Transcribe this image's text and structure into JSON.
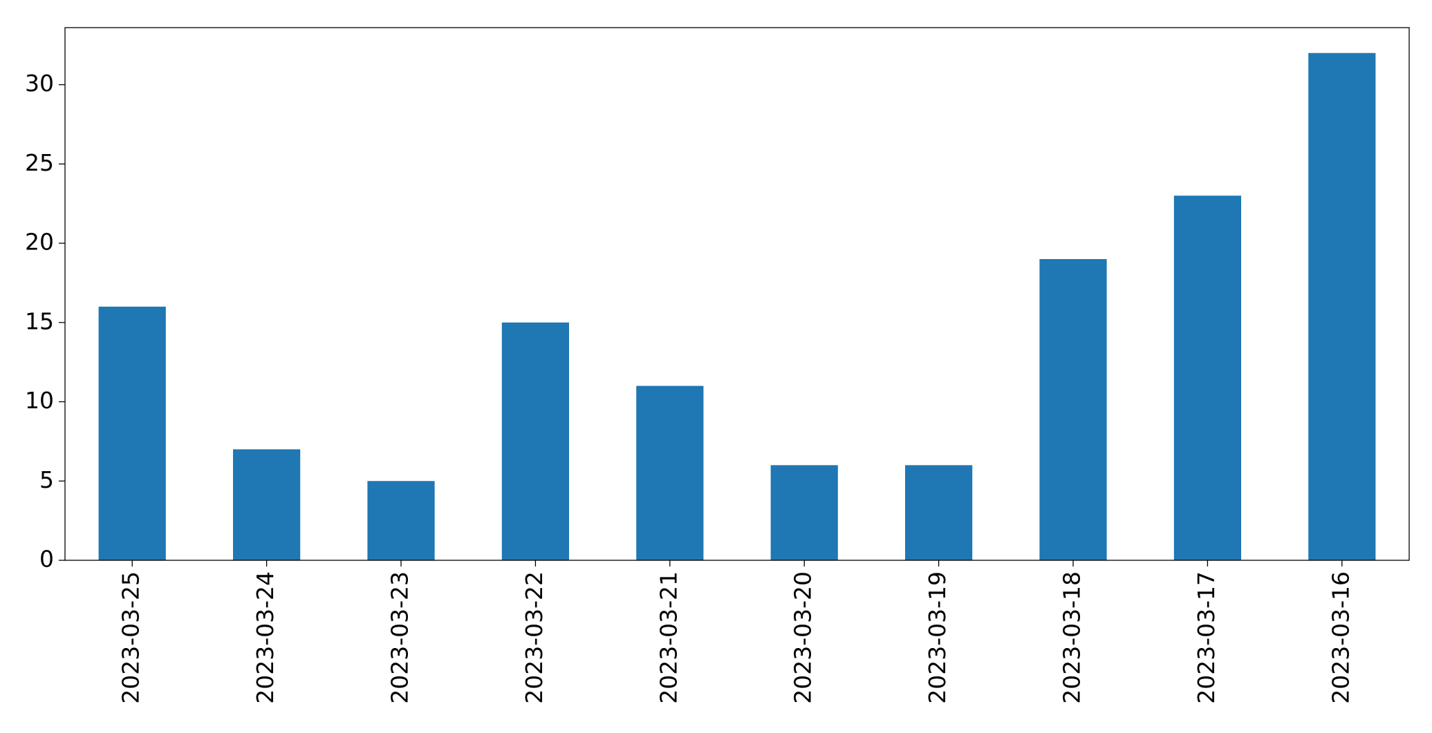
{
  "chart_data": {
    "type": "bar",
    "categories": [
      "2023-03-25",
      "2023-03-24",
      "2023-03-23",
      "2023-03-22",
      "2023-03-21",
      "2023-03-20",
      "2023-03-19",
      "2023-03-18",
      "2023-03-17",
      "2023-03-16"
    ],
    "values": [
      16,
      7,
      5,
      15,
      11,
      6,
      6,
      19,
      23,
      32
    ],
    "color": "#1f77b4",
    "ylim": [
      0,
      33.6
    ],
    "yticks": [
      0,
      5,
      10,
      15,
      20,
      25,
      30
    ],
    "grid": false
  }
}
